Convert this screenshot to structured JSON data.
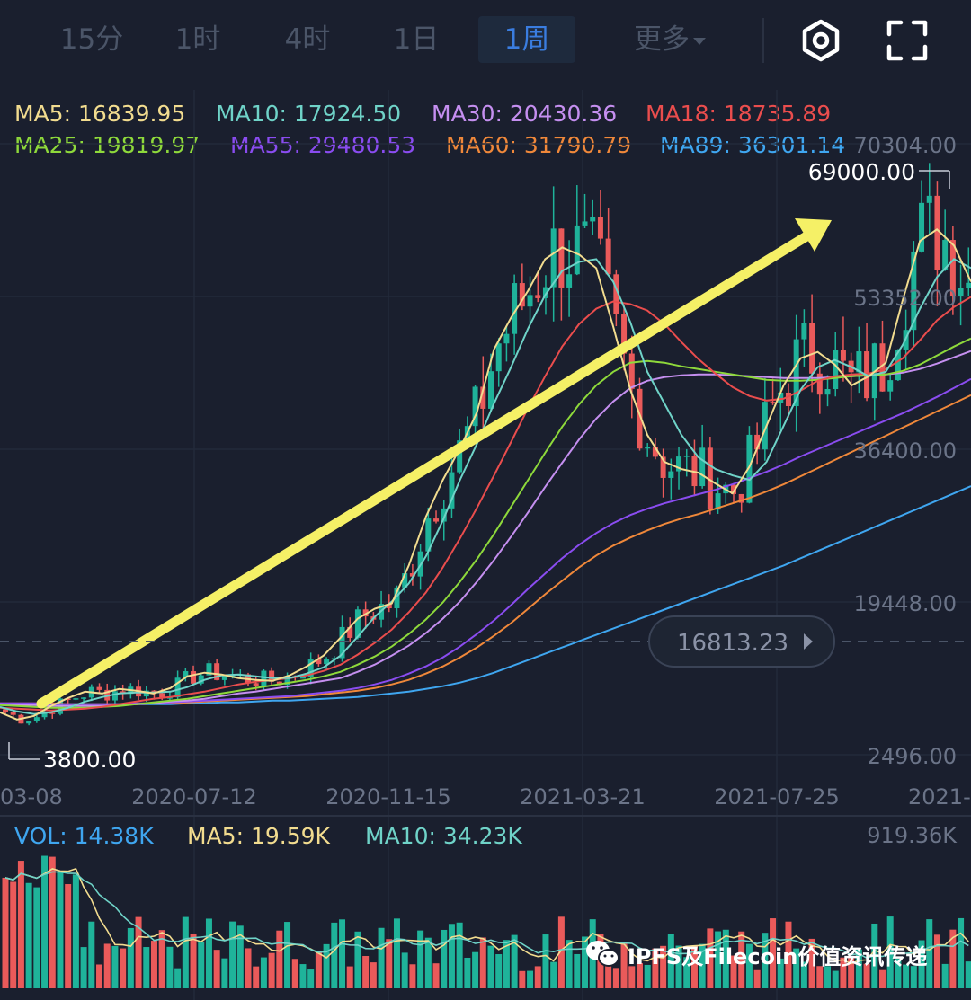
{
  "tabs": [
    {
      "label": "15分",
      "active": false
    },
    {
      "label": "1时",
      "active": false
    },
    {
      "label": "4时",
      "active": false
    },
    {
      "label": "1日",
      "active": false
    },
    {
      "label": "1周",
      "active": true
    }
  ],
  "more_label": "更多",
  "icons": {
    "settings": "gear-icon",
    "fullscreen": "fullscreen-icon"
  },
  "ma_legend": [
    {
      "text": "MA5: 16839.95",
      "color": "#f2dc8f"
    },
    {
      "text": "MA10: 17924.50",
      "color": "#6fd3c8"
    },
    {
      "text": "MA30: 20430.36",
      "color": "#c58ff0"
    },
    {
      "text": "MA18: 18735.89",
      "color": "#ea4d4d"
    },
    {
      "text": "MA25: 19819.97",
      "color": "#8ed93b"
    },
    {
      "text": "MA55: 29480.53",
      "color": "#8a4cf0"
    },
    {
      "text": "MA60: 31790.79",
      "color": "#f0883a"
    },
    {
      "text": "MA89: 36301.14",
      "color": "#3fa6f0"
    }
  ],
  "vol_legend": [
    {
      "text": "VOL: 14.38K",
      "color": "#3fa6f0"
    },
    {
      "text": "MA5: 19.59K",
      "color": "#f2dc8f"
    },
    {
      "text": "MA10: 34.23K",
      "color": "#6fd3c8"
    }
  ],
  "colors": {
    "up": "#1fb39a",
    "down": "#ea5a5a",
    "arrow": "#f5f066",
    "axis_text": "#6b7488"
  },
  "watermark": "IPFS及Filecoin价值资讯传递",
  "chart_data": {
    "type": "candlestick",
    "y_ticks": [
      "70304.00",
      "53352.00",
      "36400.00",
      "19448.00",
      "2496.00"
    ],
    "ylim": [
      2496,
      70304
    ],
    "x_ticks": [
      "03-08",
      "2020-07-12",
      "2020-11-15",
      "2021-03-21",
      "2021-07-25",
      "2021-"
    ],
    "high_label": "69000.00",
    "low_label": "3800.00",
    "current_price": "16813.23",
    "current_price_value": 16813.23,
    "vol_max_label": "919.36K",
    "annotation": "uptrend-arrow",
    "ma_lines": {
      "MA5": [
        7200,
        6400,
        6800,
        7900,
        8800,
        9500,
        9300,
        9800,
        9600,
        9300,
        9900,
        11200,
        11600,
        11400,
        11000,
        10800,
        10700,
        11300,
        12300,
        13500,
        15500,
        17600,
        18700,
        19300,
        23500,
        28900,
        33000,
        36500,
        40500,
        47500,
        51000,
        54000,
        57500,
        58800,
        58000,
        56500,
        50000,
        43000,
        38000,
        35000,
        34200,
        33800,
        32600,
        31500,
        34500,
        39000,
        43500,
        46500,
        47200,
        45800,
        43500,
        44500,
        46000,
        53000,
        59500,
        60800,
        59000,
        55000
      ],
      "MA10": [
        7800,
        7300,
        7000,
        7200,
        7700,
        8400,
        8900,
        9300,
        9400,
        9400,
        9500,
        10000,
        10800,
        11300,
        11400,
        11200,
        11000,
        11000,
        11500,
        12200,
        13500,
        15600,
        17800,
        19500,
        21500,
        24500,
        28500,
        33000,
        37000,
        41500,
        45500,
        49800,
        53500,
        56200,
        57200,
        57500,
        55000,
        50500,
        45000,
        41500,
        38000,
        35500,
        34200,
        33500,
        33000,
        35000,
        39000,
        43000,
        45500,
        46300,
        45500,
        44500,
        45000,
        48000,
        52000,
        55500,
        57500,
        56500
      ],
      "MA18": [
        7700,
        7600,
        7500,
        7400,
        7500,
        7600,
        7800,
        8100,
        8400,
        8700,
        8900,
        9200,
        9500,
        9900,
        10300,
        10600,
        10800,
        11000,
        11300,
        11800,
        12500,
        13600,
        14900,
        16400,
        18300,
        20500,
        23300,
        26500,
        29900,
        33500,
        37200,
        41000,
        44500,
        47800,
        50300,
        52000,
        52800,
        52500,
        51800,
        50300,
        48300,
        46400,
        44800,
        43300,
        42300,
        41800,
        42000,
        42900,
        44000,
        44500,
        44700,
        44800,
        45300,
        46500,
        48500,
        50700,
        52200,
        53300
      ],
      "MA25": [
        8000,
        7900,
        7800,
        7700,
        7700,
        7700,
        7800,
        7900,
        8100,
        8300,
        8500,
        8700,
        9000,
        9300,
        9600,
        9900,
        10200,
        10500,
        10800,
        11200,
        11700,
        12500,
        13400,
        14500,
        15900,
        17500,
        19400,
        21700,
        24200,
        27000,
        30000,
        33000,
        36000,
        38900,
        41400,
        43500,
        45000,
        46000,
        46200,
        46000,
        45600,
        45300,
        45000,
        44700,
        44400,
        44100,
        44000,
        44000,
        44100,
        44300,
        44500,
        44600,
        44700,
        45100,
        45800,
        46800,
        47800,
        48700
      ],
      "MA30": [
        8100,
        8000,
        8000,
        7900,
        7900,
        7900,
        7900,
        8000,
        8100,
        8200,
        8400,
        8500,
        8700,
        9000,
        9300,
        9500,
        9800,
        10100,
        10400,
        10700,
        11000,
        11700,
        12500,
        13500,
        14600,
        16000,
        17600,
        19500,
        21700,
        24100,
        26700,
        29400,
        32200,
        34900,
        37500,
        39800,
        41700,
        43200,
        44000,
        44400,
        44600,
        44700,
        44700,
        44600,
        44500,
        44400,
        44300,
        44300,
        44300,
        44400,
        44500,
        44600,
        44700,
        44900,
        45300,
        45900,
        46600,
        47300
      ],
      "MA55": [
        8200,
        8200,
        8200,
        8100,
        8100,
        8100,
        8100,
        8100,
        8200,
        8200,
        8300,
        8400,
        8500,
        8600,
        8700,
        8800,
        8900,
        9000,
        9200,
        9400,
        9600,
        9900,
        10300,
        10800,
        11500,
        12300,
        13300,
        14500,
        15900,
        17400,
        19100,
        20900,
        22600,
        24300,
        25800,
        27100,
        28200,
        29100,
        29800,
        30400,
        30900,
        31400,
        31900,
        32500,
        33200,
        33900,
        34700,
        35600,
        36400,
        37200,
        38000,
        38800,
        39600,
        40400,
        41300,
        42200,
        43200,
        44200
      ],
      "MA60": [
        8200,
        8200,
        8200,
        8200,
        8100,
        8100,
        8100,
        8100,
        8100,
        8200,
        8200,
        8300,
        8400,
        8500,
        8600,
        8700,
        8800,
        8900,
        9000,
        9200,
        9400,
        9600,
        9900,
        10300,
        10800,
        11500,
        12300,
        13300,
        14400,
        15700,
        17100,
        18700,
        20300,
        21800,
        23300,
        24600,
        25700,
        26600,
        27400,
        28100,
        28700,
        29200,
        29800,
        30400,
        31000,
        31700,
        32500,
        33400,
        34300,
        35200,
        36100,
        37000,
        37900,
        38800,
        39700,
        40600,
        41500,
        42400
      ],
      "MA89": [
        8100,
        8100,
        8100,
        8100,
        8100,
        8100,
        8100,
        8100,
        8100,
        8100,
        8100,
        8200,
        8200,
        8300,
        8300,
        8400,
        8500,
        8500,
        8600,
        8700,
        8800,
        8900,
        9100,
        9300,
        9500,
        9800,
        10100,
        10500,
        11000,
        11600,
        12300,
        13000,
        13700,
        14400,
        15100,
        15800,
        16500,
        17200,
        17900,
        18600,
        19300,
        20000,
        20700,
        21400,
        22100,
        22800,
        23500,
        24300,
        25100,
        25900,
        26700,
        27500,
        28300,
        29100,
        29900,
        30700,
        31500,
        32300
      ]
    }
  }
}
